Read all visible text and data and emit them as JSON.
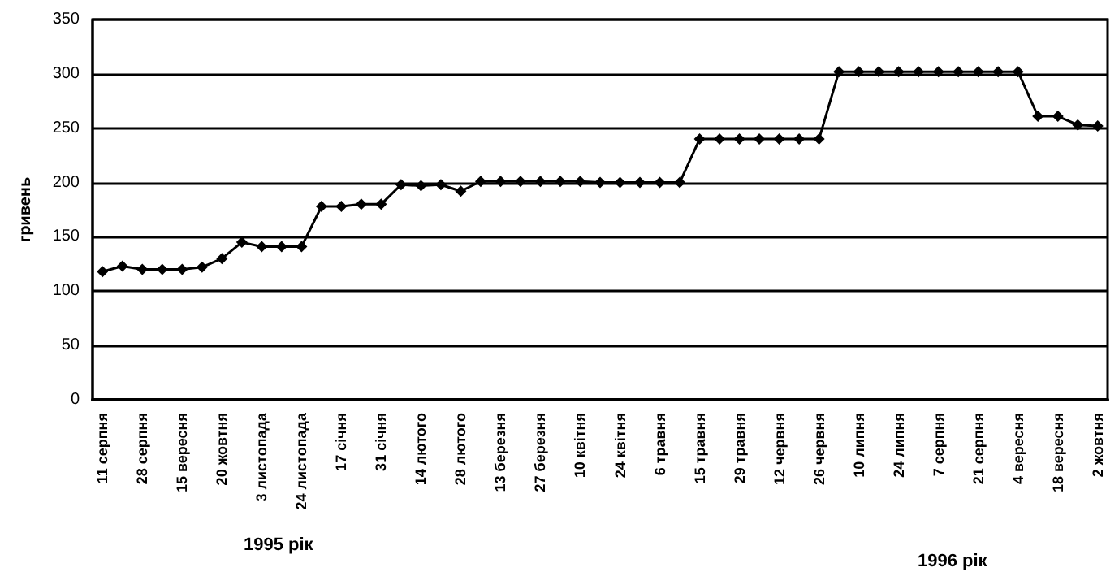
{
  "chart_data": {
    "type": "line",
    "ylabel": "гривень",
    "categories": [
      "11 серпня",
      null,
      "28 серпня",
      null,
      "15 вересня",
      null,
      "20 жовтня",
      null,
      "3 листопада",
      null,
      "24 листопада",
      null,
      "17 січня",
      null,
      "31 січня",
      null,
      "14 лютого",
      null,
      "28 лютого",
      null,
      "13 березня",
      null,
      "27 березня",
      null,
      "10 квітня",
      null,
      "24 квітня",
      null,
      "6 травня",
      null,
      "15 травня",
      null,
      "29 травня",
      null,
      "12 червня",
      null,
      "26 червня",
      null,
      "10 липня",
      null,
      "24 липня",
      null,
      "7 серпня",
      null,
      "21 серпня",
      null,
      "4 вересня",
      null,
      "18 вересня",
      null,
      "2 жовтня"
    ],
    "series": [
      {
        "color": "#000000",
        "values": [
          118,
          123,
          120,
          120,
          120,
          122,
          130,
          145,
          141,
          141,
          141,
          178,
          178,
          180,
          180,
          198,
          197,
          198,
          192,
          201,
          201,
          201,
          201,
          201,
          201,
          200,
          200,
          200,
          200,
          200,
          240,
          240,
          240,
          240,
          240,
          240,
          240,
          302,
          302,
          302,
          302,
          302,
          302,
          302,
          302,
          302,
          302,
          261,
          261,
          253,
          252
        ]
      }
    ],
    "ylim": [
      0,
      350
    ],
    "yticks": [
      0,
      50,
      100,
      150,
      200,
      250,
      300,
      350
    ],
    "grid": "y",
    "marker": "diamond",
    "line_style": "solid",
    "annotations": [
      "1995 рік",
      "1996 рік"
    ]
  }
}
